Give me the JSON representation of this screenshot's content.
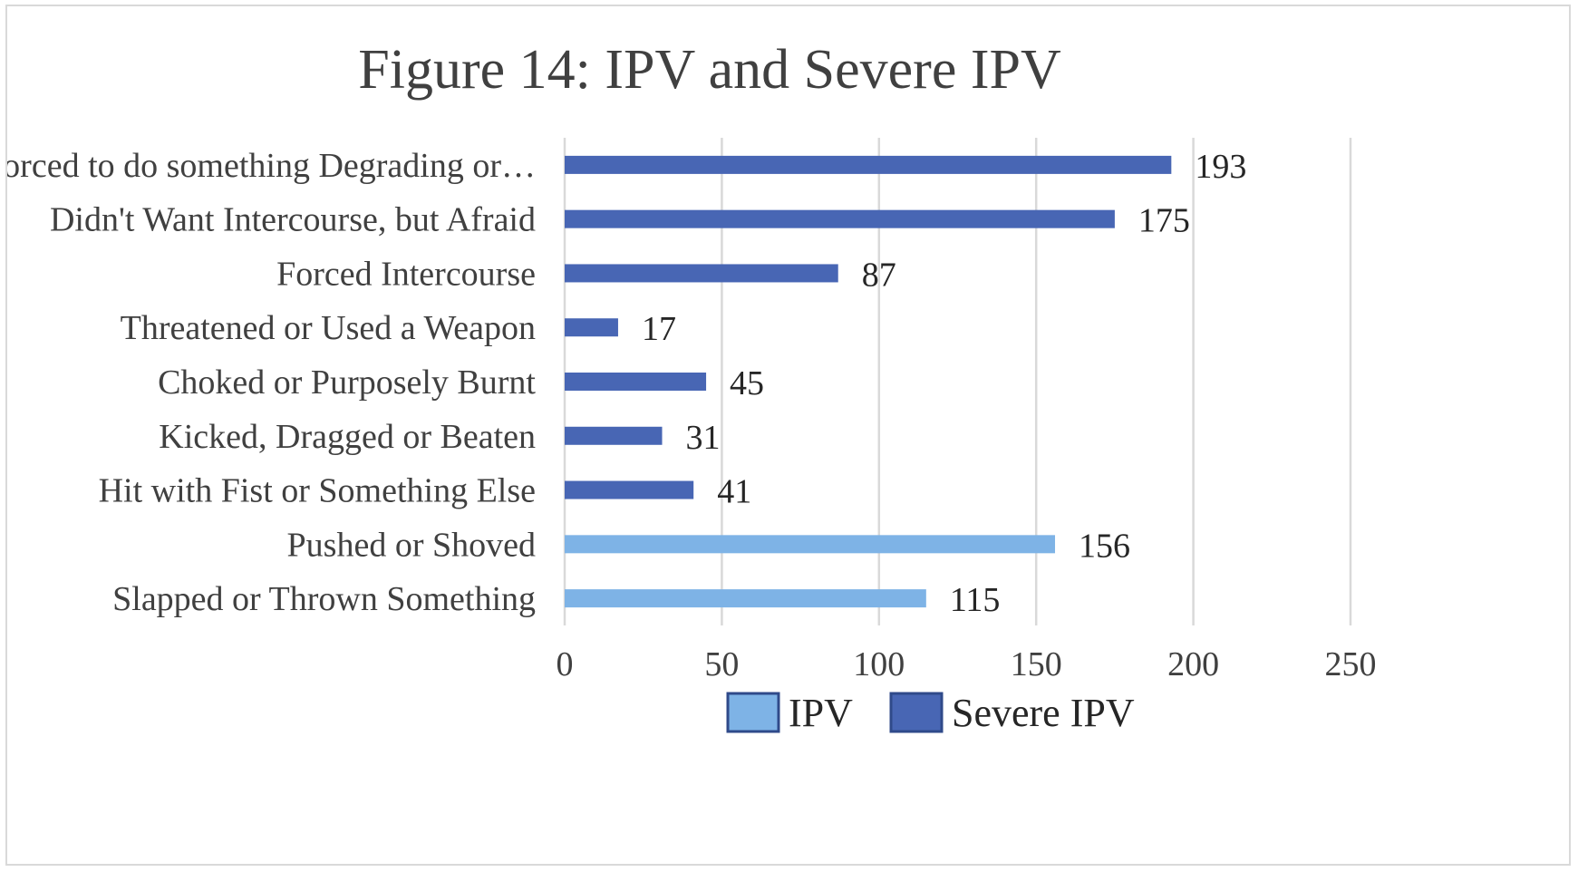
{
  "chart_data": {
    "type": "bar",
    "orientation": "horizontal",
    "title": "Figure 14: IPV and Severe IPV",
    "xlabel": "",
    "ylabel": "",
    "xlim": [
      0,
      250
    ],
    "x_ticks": [
      "0",
      "50",
      "100",
      "150",
      "200",
      "250"
    ],
    "x_tick_values": [
      0,
      50,
      100,
      150,
      200,
      250
    ],
    "grid": true,
    "legend_position": "bottom",
    "categories": [
      "Forced to do something Degrading or…",
      "Didn't Want Intercourse, but Afraid",
      "Forced Intercourse",
      "Threatened or Used a Weapon",
      "Choked or Purposely Burnt",
      "Kicked, Dragged or Beaten",
      "Hit with Fist or Something Else",
      "Pushed  or Shoved",
      "Slapped or Thrown Something"
    ],
    "values": [
      193,
      175,
      87,
      17,
      45,
      31,
      41,
      156,
      115
    ],
    "value_labels": [
      "193",
      "175",
      "87",
      "17",
      "45",
      "31",
      "41",
      "156",
      "115"
    ],
    "bar_series": [
      "Severe IPV",
      "Severe IPV",
      "Severe IPV",
      "Severe IPV",
      "Severe IPV",
      "Severe IPV",
      "Severe IPV",
      "IPV",
      "IPV"
    ],
    "series": [
      {
        "name": "IPV",
        "color": "#7eb3e6"
      },
      {
        "name": "Severe IPV",
        "color": "#4866b4"
      }
    ]
  }
}
